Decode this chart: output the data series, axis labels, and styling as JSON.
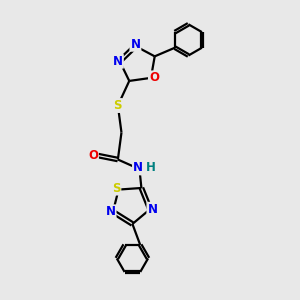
{
  "background_color": "#e8e8e8",
  "bond_color": "#000000",
  "atom_colors": {
    "N": "#0000ee",
    "O": "#ee0000",
    "S": "#cccc00",
    "H": "#008080",
    "C": "#000000"
  },
  "figsize": [
    3.0,
    3.0
  ],
  "dpi": 100,
  "xlim": [
    0,
    10
  ],
  "ylim": [
    0,
    10
  ],
  "lw": 1.6,
  "fs": 8.5
}
